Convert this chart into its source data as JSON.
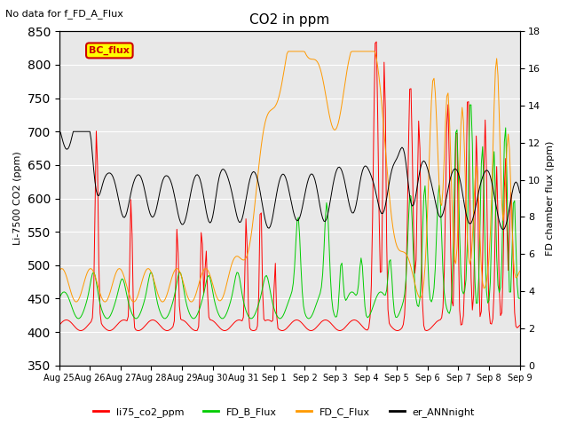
{
  "title": "CO2 in ppm",
  "subtitle": "No data for f_FD_A_Flux",
  "ylabel_left": "Li-7500 CO2 (ppm)",
  "ylabel_right": "FD chamber flux (ppm)",
  "ylim_left": [
    350,
    850
  ],
  "ylim_right": [
    0,
    18
  ],
  "yticks_left": [
    350,
    400,
    450,
    500,
    550,
    600,
    650,
    700,
    750,
    800,
    850
  ],
  "yticks_right": [
    0,
    2,
    4,
    6,
    8,
    10,
    12,
    14,
    16,
    18
  ],
  "date_labels": [
    "Aug 25",
    "Aug 26",
    "Aug 27",
    "Aug 28",
    "Aug 29",
    "Aug 30",
    "Aug 31",
    "Sep 1",
    "Sep 2",
    "Sep 3",
    "Sep 4",
    "Sep 5",
    "Sep 6",
    "Sep 7",
    "Sep 8",
    "Sep 9"
  ],
  "bc_flux_box_color": "#ffff00",
  "bc_flux_text_color": "#cc0000",
  "bc_flux_border_color": "#cc0000",
  "line_colors": {
    "li75_co2_ppm": "#ff0000",
    "FD_B_Flux": "#00cc00",
    "FD_C_Flux": "#ff9900",
    "er_ANNnight": "#000000"
  },
  "legend_labels": [
    "li75_co2_ppm",
    "FD_B_Flux",
    "FD_C_Flux",
    "er_ANNnight"
  ],
  "background_color": "#e8e8e8"
}
